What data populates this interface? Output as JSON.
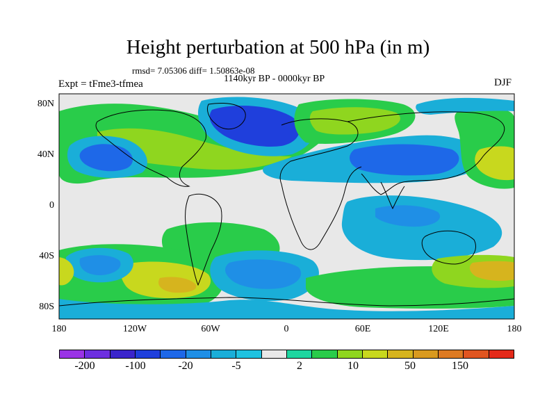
{
  "header": {
    "title": "Height perturbation at 500 hPa (in m)",
    "stats": "rmsd= 7.05306 diff= 1.50863e-08",
    "period": "1140kyr BP - 0000kyr BP",
    "experiment": "Expt = tFme3-tfmea",
    "season": "DJF"
  },
  "map": {
    "lat_labels": [
      "80N",
      "40N",
      "0",
      "40S",
      "80S"
    ],
    "lon_labels": [
      "180",
      "120W",
      "60W",
      "0",
      "60E",
      "120E",
      "180"
    ],
    "background_color": "#e8e8e8"
  },
  "colorbar": {
    "colors": [
      "#9a33e6",
      "#6d2fe0",
      "#3b25cc",
      "#1f3fdc",
      "#1e68e8",
      "#1f8fe6",
      "#1aaed8",
      "#1fc2e0",
      "#e8e8e8",
      "#1ed6a0",
      "#29cc4a",
      "#8fd61f",
      "#c8d81e",
      "#d6b41e",
      "#d99a1f",
      "#dd7a22",
      "#e05520",
      "#e42a1a"
    ],
    "labels": [
      "-200",
      "-100",
      "-20",
      "-5",
      "2",
      "10",
      "50",
      "150"
    ]
  }
}
